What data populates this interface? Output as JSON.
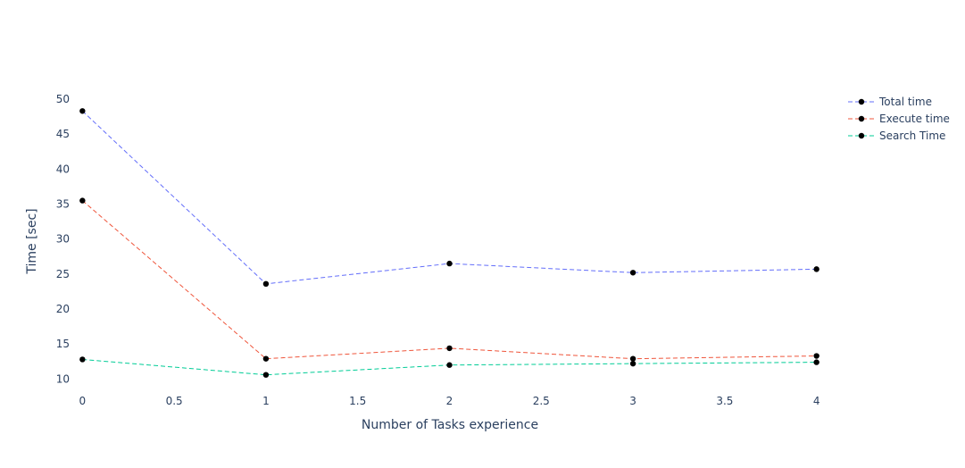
{
  "chart_data": {
    "type": "line",
    "title": "",
    "xlabel": "Number of Tasks experience",
    "ylabel": "Time [sec]",
    "x": [
      0,
      1,
      2,
      3,
      4
    ],
    "xlim": [
      -0.06,
      4.06
    ],
    "ylim": [
      8.9,
      51.4
    ],
    "x_ticks": [
      0,
      0.5,
      1,
      1.5,
      2,
      2.5,
      3,
      3.5,
      4
    ],
    "x_tick_labels": [
      "0",
      "0.5",
      "1",
      "1.5",
      "2",
      "2.5",
      "3",
      "3.5",
      "4"
    ],
    "y_ticks": [
      10,
      15,
      20,
      25,
      30,
      35,
      40,
      45,
      50
    ],
    "y_tick_labels": [
      "10",
      "15",
      "20",
      "25",
      "30",
      "35",
      "40",
      "45",
      "50"
    ],
    "grid": false,
    "legend_position": "top-right",
    "marker_color": "#000000",
    "series": [
      {
        "name": "Total time",
        "color": "#636efa",
        "values": [
          48.3,
          23.6,
          26.5,
          25.2,
          25.7
        ]
      },
      {
        "name": "Execute time",
        "color": "#ef553b",
        "values": [
          35.5,
          12.9,
          14.4,
          12.9,
          13.3
        ]
      },
      {
        "name": "Search Time",
        "color": "#00cc96",
        "values": [
          12.8,
          10.6,
          12.0,
          12.2,
          12.4
        ]
      }
    ]
  }
}
